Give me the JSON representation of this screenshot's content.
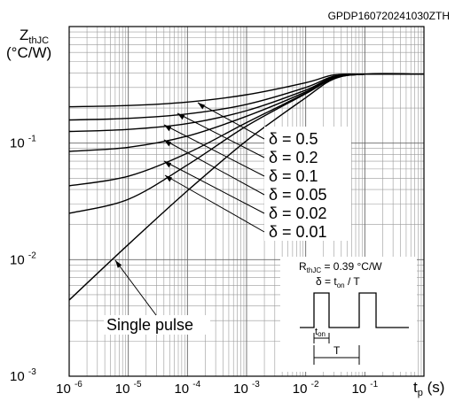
{
  "chart_data": {
    "type": "line",
    "doc_id": "GPDP160720241030ZTH",
    "ylabel_main": "Z",
    "ylabel_sub": "thJC",
    "ylabel_unit": "(°C/W)",
    "xlabel_main": "t",
    "xlabel_sub": "p",
    "xlabel_unit": " (s)",
    "x_scale": "log",
    "y_scale": "log",
    "xlim": [
      1e-06,
      1
    ],
    "ylim": [
      0.001,
      1
    ],
    "x_ticks": [
      {
        "value": 1e-06,
        "base": "10",
        "exp": "-6"
      },
      {
        "value": 1e-05,
        "base": "10",
        "exp": "-5"
      },
      {
        "value": 0.0001,
        "base": "10",
        "exp": "-4"
      },
      {
        "value": 0.001,
        "base": "10",
        "exp": "-3"
      },
      {
        "value": 0.01,
        "base": "10",
        "exp": "-2"
      },
      {
        "value": 0.1,
        "base": "10",
        "exp": "-1"
      }
    ],
    "y_ticks": [
      {
        "value": 0.1,
        "base": "10",
        "exp": "-1"
      },
      {
        "value": 0.01,
        "base": "10",
        "exp": "-2"
      },
      {
        "value": 0.001,
        "base": "10",
        "exp": "-3"
      }
    ],
    "grid": true,
    "legend_labels": [
      "δ = 0.5",
      "δ = 0.2",
      "δ = 0.1",
      "δ = 0.05",
      "δ = 0.02",
      "δ = 0.01"
    ],
    "series": [
      {
        "name": "δ = 0.5",
        "x": [
          1e-06,
          1e-05,
          0.0001,
          0.001,
          0.01,
          0.03,
          0.1,
          1
        ],
        "y": [
          0.205,
          0.21,
          0.225,
          0.26,
          0.33,
          0.385,
          0.39,
          0.39
        ]
      },
      {
        "name": "δ = 0.2",
        "x": [
          1e-06,
          1e-05,
          0.0001,
          0.001,
          0.01,
          0.03,
          0.1,
          1
        ],
        "y": [
          0.158,
          0.163,
          0.178,
          0.215,
          0.3,
          0.375,
          0.39,
          0.39
        ]
      },
      {
        "name": "δ = 0.1",
        "x": [
          1e-06,
          1e-05,
          0.0001,
          0.001,
          0.01,
          0.03,
          0.1,
          1
        ],
        "y": [
          0.126,
          0.131,
          0.147,
          0.19,
          0.285,
          0.37,
          0.39,
          0.39
        ]
      },
      {
        "name": "δ = 0.05",
        "x": [
          1e-06,
          1e-05,
          0.0001,
          0.001,
          0.01,
          0.03,
          0.1,
          1
        ],
        "y": [
          0.085,
          0.092,
          0.115,
          0.17,
          0.275,
          0.365,
          0.39,
          0.39
        ]
      },
      {
        "name": "δ = 0.02",
        "x": [
          1e-06,
          1e-05,
          0.0001,
          0.001,
          0.01,
          0.03,
          0.1,
          1
        ],
        "y": [
          0.043,
          0.052,
          0.082,
          0.15,
          0.268,
          0.36,
          0.39,
          0.39
        ]
      },
      {
        "name": "δ = 0.01",
        "x": [
          1e-06,
          1e-05,
          0.0001,
          0.001,
          0.01,
          0.03,
          0.1,
          1
        ],
        "y": [
          0.025,
          0.033,
          0.065,
          0.14,
          0.265,
          0.36,
          0.39,
          0.39
        ]
      },
      {
        "name": "Single pulse",
        "x": [
          1e-06,
          1e-05,
          0.0001,
          0.001,
          0.01,
          0.03,
          0.1,
          1
        ],
        "y": [
          0.0045,
          0.0135,
          0.039,
          0.105,
          0.245,
          0.355,
          0.39,
          0.39
        ]
      }
    ],
    "annotation_single_pulse": "Single pulse",
    "inset": {
      "r_main": "R",
      "r_sub": "thJC",
      "r_value": " = 0.39 °C/W",
      "d_main": "δ = t",
      "d_sub": "on",
      "d_rest": " / T",
      "ton_main": "t",
      "ton_sub": "on",
      "period": "T"
    }
  }
}
